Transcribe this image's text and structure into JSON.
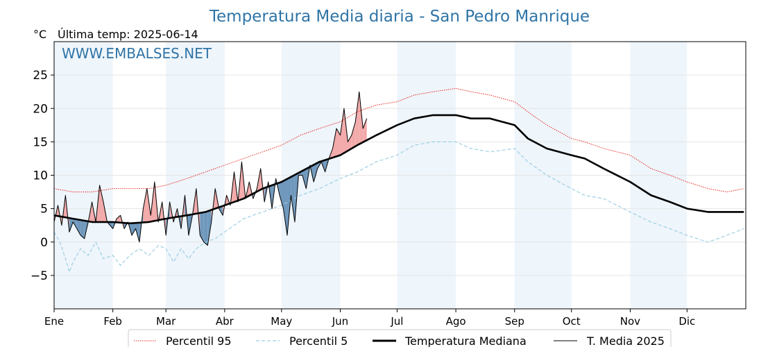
{
  "title": "Temperatura Media diaria - San Pedro Manrique",
  "unit": "°C",
  "last_temp": "Última temp: 2025-06-14",
  "watermark": "WWW.EMBALSES.NET",
  "colors": {
    "p95": "#e8251f",
    "p5": "#9ccfe3",
    "median": "#000000",
    "current": "#000000",
    "above_fill": "#f3aaaa",
    "below_fill": "#6f98bc",
    "band": "#eef5fb"
  },
  "chart_data": {
    "type": "line",
    "title": "Temperatura Media diaria - San Pedro Manrique",
    "ylabel": "°C",
    "ylim": [
      -10,
      30
    ],
    "yticks": [
      -5,
      0,
      5,
      10,
      15,
      20,
      25
    ],
    "ytick_labels": [
      "−5",
      "0",
      "5",
      "10",
      "15",
      "20",
      "25"
    ],
    "xlim": [
      0,
      365
    ],
    "x_unit": "day of year",
    "month_labels": [
      "Ene",
      "Feb",
      "Mar",
      "Abr",
      "May",
      "Jun",
      "Jul",
      "Ago",
      "Sep",
      "Oct",
      "Nov",
      "Dic"
    ],
    "month_starts": [
      0,
      31,
      59,
      90,
      120,
      151,
      181,
      212,
      243,
      273,
      304,
      334
    ],
    "grid": true,
    "legend_position": "bottom-center",
    "series": [
      {
        "name": "Percentil 95",
        "style": "dotted-red",
        "x": [
          0,
          10,
          20,
          31,
          40,
          50,
          59,
          70,
          80,
          90,
          100,
          110,
          120,
          130,
          140,
          151,
          160,
          170,
          181,
          190,
          200,
          212,
          220,
          230,
          243,
          250,
          260,
          273,
          280,
          290,
          304,
          315,
          325,
          334,
          345,
          355,
          364
        ],
        "y": [
          8,
          7.5,
          7.5,
          8,
          8,
          8,
          8.5,
          9.5,
          10.5,
          11.5,
          12.5,
          13.5,
          14.5,
          16,
          17,
          18,
          19.5,
          20.5,
          21,
          22,
          22.5,
          23,
          22.5,
          22,
          21,
          19.5,
          17.5,
          15.5,
          15,
          14,
          13,
          11,
          10,
          9,
          8,
          7.5,
          8
        ]
      },
      {
        "name": "Percentil 5",
        "style": "dashed-lightblue",
        "x": [
          0,
          3,
          6,
          8,
          10,
          14,
          18,
          22,
          26,
          31,
          35,
          40,
          45,
          50,
          55,
          59,
          63,
          67,
          71,
          75,
          80,
          85,
          90,
          95,
          100,
          110,
          120,
          130,
          140,
          151,
          160,
          170,
          181,
          190,
          200,
          212,
          220,
          230,
          243,
          250,
          260,
          273,
          280,
          290,
          304,
          315,
          325,
          334,
          345,
          355,
          364
        ],
        "y": [
          1.5,
          0,
          -2.5,
          -4.5,
          -3,
          -1,
          -2,
          0,
          -2.5,
          -2,
          -3.5,
          -2,
          -1,
          -2,
          -0.5,
          -1,
          -3,
          -1,
          -2.5,
          -1,
          0,
          0.5,
          1.5,
          2.5,
          3.5,
          4.5,
          5.5,
          7,
          8,
          9.5,
          10.5,
          12,
          13,
          14.5,
          15,
          15,
          14,
          13.5,
          14,
          12,
          10,
          8,
          7,
          6.5,
          4.5,
          3,
          2,
          1,
          0,
          1,
          2
        ]
      },
      {
        "name": "Temperatura Mediana",
        "style": "thick-black",
        "x": [
          0,
          10,
          20,
          31,
          40,
          50,
          59,
          70,
          80,
          90,
          100,
          110,
          120,
          130,
          140,
          151,
          160,
          170,
          181,
          190,
          200,
          212,
          220,
          230,
          243,
          250,
          260,
          273,
          280,
          290,
          304,
          315,
          325,
          334,
          345,
          355,
          364
        ],
        "y": [
          4,
          3.5,
          3,
          3,
          2.8,
          3,
          3.5,
          4,
          4.5,
          5.5,
          6.5,
          8,
          9,
          10.5,
          12,
          13,
          14.5,
          16,
          17.5,
          18.5,
          19,
          19,
          18.5,
          18.5,
          17.5,
          15.5,
          14,
          13,
          12.5,
          11,
          9,
          7,
          6,
          5,
          4.5,
          4.5,
          4.5
        ]
      },
      {
        "name": "T. Media 2025",
        "style": "thin-black-filled",
        "x": [
          0,
          2,
          4,
          6,
          8,
          10,
          12,
          14,
          16,
          18,
          20,
          22,
          24,
          26,
          28,
          31,
          33,
          35,
          37,
          39,
          41,
          43,
          45,
          47,
          49,
          51,
          53,
          55,
          57,
          59,
          61,
          63,
          65,
          67,
          69,
          71,
          73,
          75,
          77,
          79,
          81,
          83,
          85,
          87,
          89,
          91,
          93,
          95,
          97,
          99,
          101,
          103,
          105,
          107,
          109,
          111,
          113,
          115,
          117,
          119,
          121,
          123,
          125,
          127,
          129,
          131,
          133,
          135,
          137,
          139,
          141,
          143,
          145,
          147,
          149,
          151,
          153,
          155,
          157,
          159,
          161,
          163,
          165
        ],
        "y": [
          3,
          5.5,
          2.5,
          7,
          1.5,
          3,
          2,
          1,
          0.5,
          3,
          6,
          3,
          8.5,
          6,
          3,
          2,
          3.5,
          4,
          2,
          3,
          1,
          2,
          0,
          5,
          8,
          4,
          9,
          3,
          6,
          1,
          6,
          3,
          5,
          2,
          7,
          1,
          4,
          8,
          1,
          0,
          -0.5,
          3,
          8,
          5,
          4,
          7,
          5.5,
          10.5,
          6,
          12,
          6.5,
          9,
          6.5,
          8,
          11,
          6,
          9,
          5,
          9.5,
          7,
          5,
          1,
          7,
          3,
          10,
          10,
          8,
          11.5,
          9,
          11,
          12,
          10.5,
          12.5,
          14,
          17,
          16,
          20,
          15,
          16,
          18,
          22.5,
          17,
          18.5
        ]
      }
    ]
  },
  "legend": {
    "p95": "Percentil 95",
    "p5": "Percentil 5",
    "median": "Temperatura Mediana",
    "current": "T. Media 2025"
  }
}
